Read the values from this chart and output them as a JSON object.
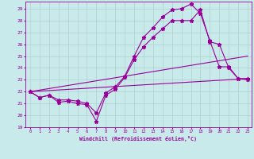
{
  "xlabel": "Windchill (Refroidissement éolien,°C)",
  "bg_color": "#c8eaea",
  "line_color": "#990099",
  "grid_color": "#b0d0d0",
  "xlim_min": -0.5,
  "xlim_max": 23.4,
  "ylim_min": 19.0,
  "ylim_max": 29.6,
  "yticks": [
    19,
    20,
    21,
    22,
    23,
    24,
    25,
    26,
    27,
    28,
    29
  ],
  "xticks": [
    0,
    1,
    2,
    3,
    4,
    5,
    6,
    7,
    8,
    9,
    10,
    11,
    12,
    13,
    14,
    15,
    16,
    17,
    18,
    19,
    20,
    21,
    22,
    23
  ],
  "curve1_x": [
    0,
    1,
    2,
    3,
    4,
    5,
    6,
    7,
    8,
    9,
    10,
    11,
    12,
    13,
    14,
    15,
    16,
    17,
    18,
    19,
    20,
    21,
    22,
    23
  ],
  "curve1_y": [
    22.0,
    21.5,
    21.7,
    21.1,
    21.2,
    21.0,
    20.9,
    19.5,
    21.7,
    22.2,
    23.2,
    24.7,
    25.8,
    26.6,
    27.3,
    28.0,
    28.0,
    28.0,
    28.9,
    26.2,
    26.0,
    24.0,
    23.1,
    23.0
  ],
  "curve2_x": [
    0,
    1,
    2,
    3,
    4,
    5,
    6,
    7,
    8,
    9,
    10,
    11,
    12,
    13,
    14,
    15,
    16,
    17,
    18,
    19,
    20,
    21,
    22,
    23
  ],
  "curve2_y": [
    22.0,
    21.5,
    21.7,
    21.3,
    21.3,
    21.2,
    21.0,
    20.2,
    21.9,
    22.4,
    23.3,
    25.0,
    26.6,
    27.4,
    28.3,
    28.9,
    29.0,
    29.4,
    28.6,
    26.3,
    24.1,
    24.1,
    23.1,
    23.1
  ],
  "line1_x": [
    0,
    23
  ],
  "line1_y": [
    22.0,
    23.1
  ],
  "line2_x": [
    0,
    23
  ],
  "line2_y": [
    22.0,
    25.0
  ]
}
